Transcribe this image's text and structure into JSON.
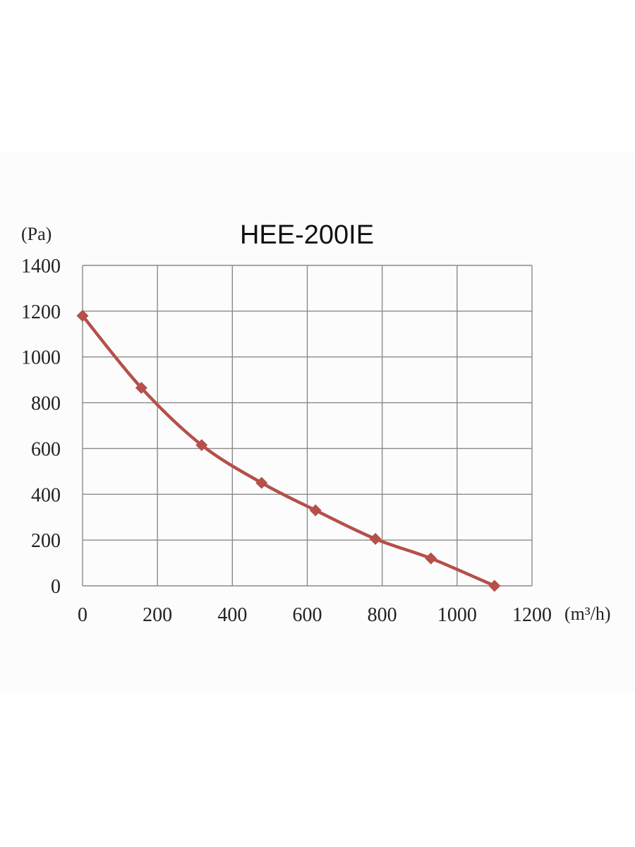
{
  "chart_data": {
    "type": "line",
    "title": "HEE-200IE",
    "y_unit": "(Pa)",
    "x_unit": "(m³/h)",
    "xlim": [
      0,
      1200
    ],
    "ylim": [
      0,
      1400
    ],
    "x_ticks": [
      0,
      200,
      400,
      600,
      800,
      1000,
      1200
    ],
    "y_ticks": [
      0,
      200,
      400,
      600,
      800,
      1000,
      1200,
      1400
    ],
    "grid": true,
    "line_color": "#b5504a",
    "series": [
      {
        "x": [
          0,
          157,
          318,
          478,
          622,
          782,
          930,
          1100
        ],
        "y": [
          1180,
          865,
          615,
          450,
          330,
          205,
          120,
          0
        ]
      }
    ]
  }
}
